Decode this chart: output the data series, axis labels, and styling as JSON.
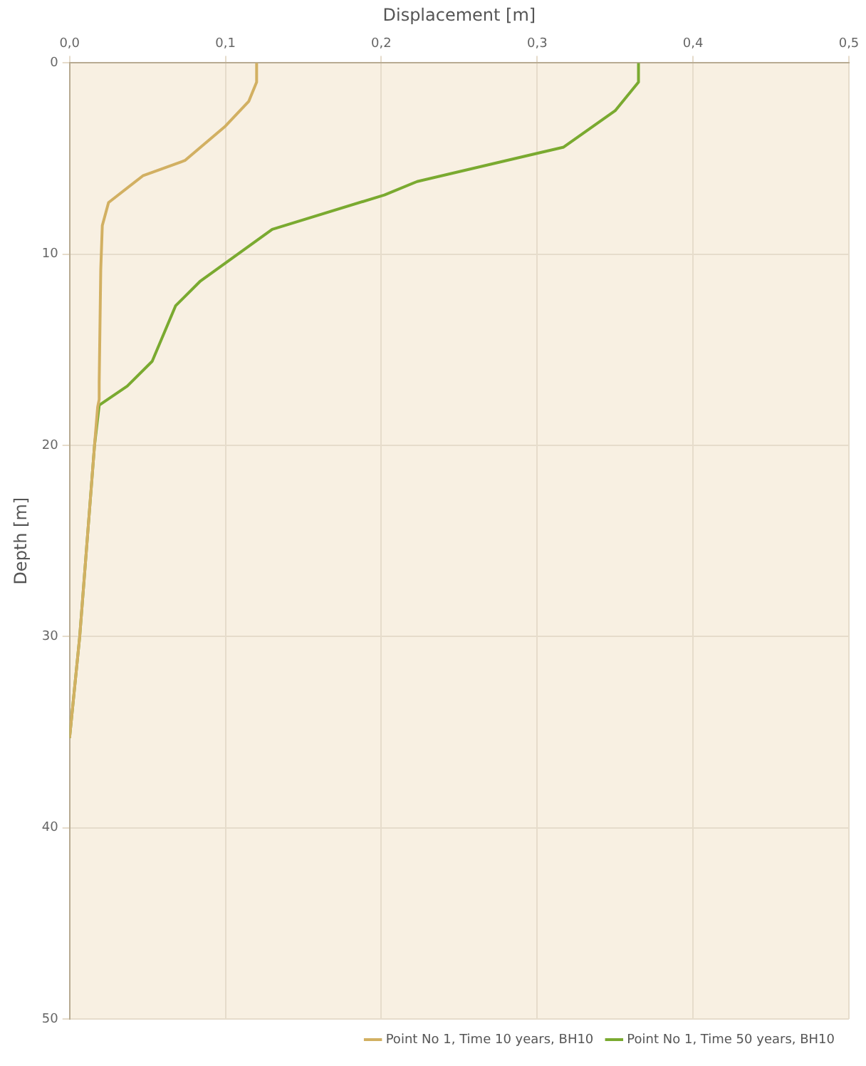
{
  "chart_data": {
    "type": "line",
    "xlabel": "Displacement [m]",
    "ylabel": "Depth [m]",
    "xlim": [
      0,
      0.5
    ],
    "xticks": [
      {
        "value": 0,
        "label": "0,0"
      },
      {
        "value": 0.1,
        "label": "0,1"
      },
      {
        "value": 0.2,
        "label": "0,2"
      },
      {
        "value": 0.3,
        "label": "0,3"
      },
      {
        "value": 0.4,
        "label": "0,4"
      },
      {
        "value": 0.5,
        "label": "0,5"
      }
    ],
    "ylim": [
      50,
      0
    ],
    "yticks": [
      0,
      10,
      20,
      30,
      40,
      50
    ],
    "grid": true,
    "legend": "bottom right",
    "marker": "none",
    "line_style": "solid",
    "series": [
      {
        "name": "Point No 1, Time 10 years, BH10",
        "color": "#d2b062",
        "x": [
          0.12,
          0.12,
          0.115,
          0.1,
          0.074,
          0.047,
          0.025,
          0.021,
          0.02,
          0.019,
          0.019,
          0.018,
          0.016,
          0.0065,
          0
        ],
        "values": [
          0,
          1,
          2,
          3.3,
          5.1,
          5.9,
          7.3,
          8.5,
          10.8,
          16.7,
          17.6,
          18,
          20,
          30,
          35.3
        ]
      },
      {
        "name": "Point No 1, Time 50 years, BH10",
        "color": "#7aaa30",
        "x": [
          0.365,
          0.365,
          0.35,
          0.317,
          0.223,
          0.202,
          0.13,
          0.084,
          0.068,
          0.053,
          0.037,
          0.019,
          0.016,
          0.0065,
          0
        ],
        "values": [
          0,
          1,
          2.5,
          4.4,
          6.2,
          6.9,
          8.7,
          11.4,
          12.7,
          15.6,
          16.9,
          17.9,
          20,
          30,
          35.3
        ]
      }
    ]
  }
}
